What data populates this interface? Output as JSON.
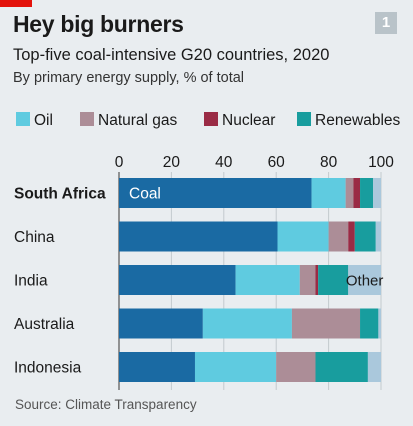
{
  "header": {
    "title": "Hey big burners",
    "subtitle": "Top-five coal-intensive G20 countries, 2020",
    "subtitle2": "By primary energy supply, % of total",
    "badge": "1"
  },
  "source": "Source: Climate Transparency",
  "colors": {
    "Coal": "#1a6aa3",
    "Oil": "#5fcbe0",
    "Natural gas": "#ac8d97",
    "Nuclear": "#9a2b45",
    "Renewables": "#189d9e",
    "Other": "#aac8dc"
  },
  "chart_data": {
    "type": "bar",
    "orientation": "horizontal",
    "stacked": true,
    "xlim": [
      0,
      100
    ],
    "xticks": [
      0,
      20,
      40,
      60,
      80,
      100
    ],
    "legend": [
      "Oil",
      "Natural gas",
      "Nuclear",
      "Renewables"
    ],
    "legend_position": "top",
    "categories": [
      "South Africa",
      "China",
      "India",
      "Australia",
      "Indonesia"
    ],
    "highlight": "South Africa",
    "series": [
      {
        "name": "Coal",
        "values": [
          73.5,
          60.5,
          44.5,
          32,
          29
        ]
      },
      {
        "name": "Oil",
        "values": [
          13,
          19.5,
          24.5,
          34,
          31
        ]
      },
      {
        "name": "Natural gas",
        "values": [
          3,
          7.5,
          6,
          26,
          15
        ]
      },
      {
        "name": "Nuclear",
        "values": [
          2.5,
          2.5,
          1,
          0,
          0
        ]
      },
      {
        "name": "Renewables",
        "values": [
          5,
          8,
          11.5,
          7,
          20
        ]
      },
      {
        "name": "Other",
        "values": [
          3,
          2,
          12.5,
          1,
          5
        ]
      }
    ],
    "annotations": [
      {
        "text": "Coal",
        "category": "South Africa",
        "series": "Coal"
      },
      {
        "text": "Other",
        "category": "India",
        "series": "Other"
      }
    ]
  }
}
